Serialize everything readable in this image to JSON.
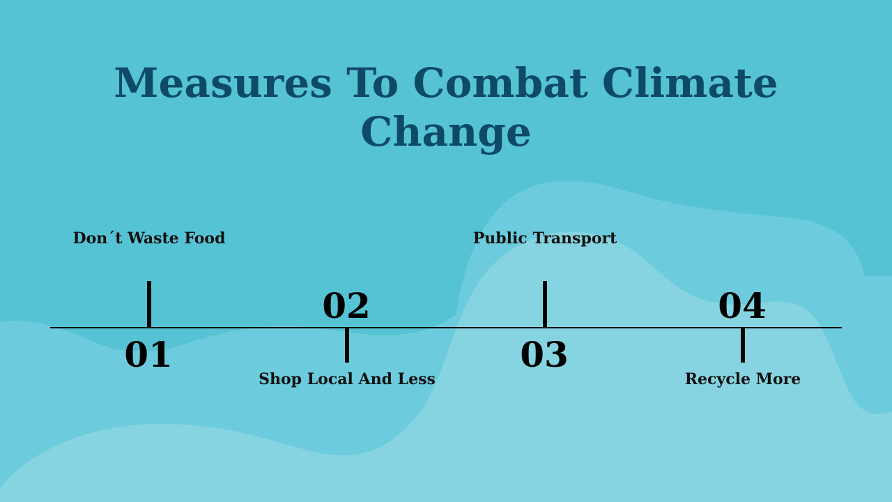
{
  "slide": {
    "title": "Measures To Combat Climate\nChange"
  },
  "timeline": {
    "steps": [
      {
        "number": "01",
        "label": "Don´t Waste Food"
      },
      {
        "number": "02",
        "label": "Shop Local And Less"
      },
      {
        "number": "03",
        "label": "Public Transport"
      },
      {
        "number": "04",
        "label": "Recycle More"
      }
    ]
  },
  "colors": {
    "background": "#5bc3d5",
    "wave_light": "#86d4e1",
    "wave_mid": "#6ccbdc",
    "title": "#0e4a66"
  }
}
